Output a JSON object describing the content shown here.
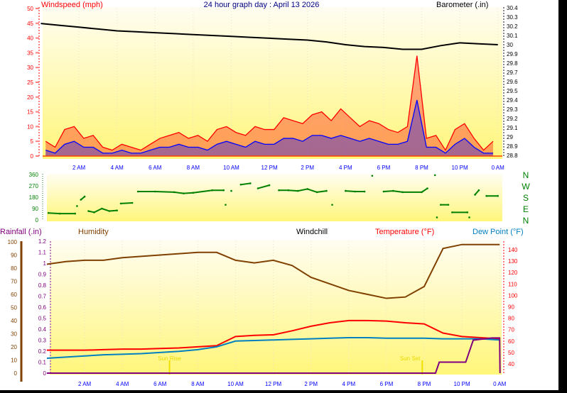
{
  "title": "24 hour graph day : April 13 2026",
  "colors": {
    "windspeed": "#ff0000",
    "wind_avg": "#0000ff",
    "barometer": "#000000",
    "direction": "#008000",
    "rainfall": "#800080",
    "humidity": "#804000",
    "windchill": "#000000",
    "temperature": "#ff0000",
    "dewpoint": "#0080c0",
    "sun": "#f0e000",
    "time_axis": "#0000ff"
  },
  "time_labels": [
    "2 AM",
    "4 AM",
    "6 AM",
    "8 AM",
    "10 AM",
    "12 PM",
    "2 PM",
    "4 PM",
    "6 PM",
    "8 PM",
    "10 PM",
    "0 AM"
  ],
  "chart_data": [
    {
      "type": "line",
      "xlabel": "",
      "y_left": {
        "label": "Windspeed (mph)",
        "range": [
          0,
          50
        ],
        "ticks": [
          "0",
          "5",
          "10",
          "15",
          "20",
          "25",
          "30",
          "35",
          "40",
          "45",
          "50"
        ]
      },
      "y_right": {
        "label": "Barometer (.in)",
        "range": [
          28.8,
          30.4
        ],
        "ticks": [
          "28.8",
          "28.9",
          "29",
          "29.1",
          "29.2",
          "29.3",
          "29.4",
          "29.5",
          "29.6",
          "29.7",
          "29.8",
          "29.9",
          "30",
          "30.1",
          "30.2",
          "30.3",
          "30.4"
        ]
      },
      "x_hours_step": 0.5,
      "series": [
        {
          "name": "Windspeed (mph)",
          "axis": "left",
          "values": [
            5,
            3,
            9,
            10,
            6,
            7,
            3,
            2,
            4,
            3,
            2,
            4,
            6,
            7,
            8,
            6,
            7,
            5,
            9,
            10,
            8,
            7,
            10,
            9,
            9,
            13,
            12,
            11,
            14,
            15,
            12,
            16,
            13,
            10,
            12,
            11,
            9,
            8,
            10,
            34,
            6,
            7,
            2,
            9,
            11,
            6,
            2,
            5
          ]
        },
        {
          "axis": "left",
          "values": [
            2,
            1,
            4,
            5,
            3,
            3,
            1,
            1,
            2,
            1,
            1,
            2,
            3,
            3,
            4,
            3,
            3,
            2,
            4,
            5,
            4,
            3,
            5,
            4,
            4,
            6,
            6,
            5,
            7,
            7,
            6,
            7,
            6,
            5,
            6,
            5,
            4,
            4,
            5,
            19,
            3,
            3,
            1,
            4,
            6,
            3,
            1,
            1
          ]
        },
        {
          "name": "Barometer (.in)",
          "axis": "right",
          "x_hours_step": 1,
          "values": [
            30.23,
            30.21,
            30.19,
            30.17,
            30.15,
            30.14,
            30.13,
            30.12,
            30.11,
            30.1,
            30.09,
            30.08,
            30.07,
            30.06,
            30.05,
            30.03,
            30.0,
            29.98,
            29.97,
            29.95,
            29.95,
            29.99,
            30.02,
            30.01,
            30.0
          ]
        }
      ]
    },
    {
      "type": "scatter",
      "y_left": {
        "range": [
          0,
          360
        ],
        "ticks": [
          "0",
          "90",
          "180",
          "270",
          "360"
        ]
      },
      "y_right": {
        "ticks": [
          "N",
          "E",
          "S",
          "W",
          "N"
        ]
      },
      "points": [
        [
          0.4,
          55
        ],
        [
          1,
          50
        ],
        [
          1.8,
          50
        ],
        [
          1.9,
          110
        ],
        [
          2.1,
          160
        ],
        [
          2.3,
          185
        ],
        [
          2.5,
          70
        ],
        [
          2.8,
          60
        ],
        [
          3.2,
          90
        ],
        [
          3.6,
          70
        ],
        [
          4,
          75
        ],
        [
          4.2,
          130
        ],
        [
          4.8,
          135
        ],
        [
          5.1,
          225
        ],
        [
          6,
          225
        ],
        [
          7,
          220
        ],
        [
          7.5,
          210
        ],
        [
          8,
          215
        ],
        [
          9,
          235
        ],
        [
          9.6,
          235
        ],
        [
          9.7,
          120
        ],
        [
          10,
          230
        ],
        [
          10.5,
          280
        ],
        [
          11,
          290
        ],
        [
          11.4,
          250
        ],
        [
          12,
          275
        ],
        [
          12.5,
          235
        ],
        [
          13,
          235
        ],
        [
          13.5,
          230
        ],
        [
          14,
          245
        ],
        [
          14.5,
          220
        ],
        [
          15,
          230
        ],
        [
          15.3,
          120
        ],
        [
          16,
          230
        ],
        [
          16.5,
          225
        ],
        [
          17,
          225
        ],
        [
          17.4,
          350
        ],
        [
          18,
          225
        ],
        [
          18.5,
          230
        ],
        [
          19,
          220
        ],
        [
          20,
          220
        ],
        [
          20.3,
          250
        ],
        [
          20.7,
          355
        ],
        [
          20.8,
          20
        ],
        [
          21,
          120
        ],
        [
          21.4,
          120
        ],
        [
          21.6,
          60
        ],
        [
          22.4,
          60
        ],
        [
          22.5,
          20
        ],
        [
          22.8,
          200
        ],
        [
          23,
          235
        ],
        [
          23.4,
          190
        ],
        [
          24,
          190
        ]
      ]
    },
    {
      "type": "line",
      "legend": [
        "Rainfall (.in)",
        "Humidity",
        "Windchill",
        "Temperature (°F)",
        "Dew Point (°F)"
      ],
      "y_humidity": {
        "range": [
          0,
          100
        ],
        "ticks": [
          "0",
          "10",
          "20",
          "30",
          "40",
          "50",
          "60",
          "70",
          "80",
          "90",
          "100"
        ]
      },
      "y_rain": {
        "range": [
          0,
          1.2
        ],
        "ticks": [
          "0",
          "0.1",
          "0.2",
          "0.3",
          "0.4",
          "0.5",
          "0.6",
          "0.7",
          "0.8",
          "0.9",
          "1",
          "1.1",
          "1.2"
        ]
      },
      "y_temp": {
        "range": [
          30,
          148
        ],
        "ticks": [
          "40",
          "50",
          "60",
          "70",
          "80",
          "90",
          "100",
          "110",
          "120",
          "130",
          "140"
        ]
      },
      "x_hours_step": 1,
      "series": [
        {
          "name": "Humidity",
          "values": [
            83,
            85,
            86,
            86,
            88,
            89,
            90,
            91,
            92,
            92,
            86,
            84,
            86,
            82,
            73,
            68,
            63,
            60,
            57,
            58,
            66,
            95,
            98,
            98,
            98
          ]
        },
        {
          "name": "Temperature (°F)",
          "values": [
            52,
            52,
            52,
            52.5,
            53,
            53,
            53.5,
            54,
            55,
            56,
            64,
            65,
            65.5,
            69,
            73,
            76,
            78,
            78,
            77.5,
            76,
            75,
            67,
            64,
            63,
            62
          ]
        },
        {
          "name": "Dew Point (°F)",
          "values": [
            45,
            46,
            47,
            48,
            48.5,
            49,
            50,
            51,
            52.5,
            55,
            60,
            60.5,
            61,
            61.5,
            62,
            62.5,
            63,
            63,
            62.5,
            62.5,
            62.5,
            62,
            62,
            62,
            61
          ]
        },
        {
          "name": "Rainfall (.in)",
          "points": [
            [
              0,
              0
            ],
            [
              20.6,
              0
            ],
            [
              20.8,
              0.1
            ],
            [
              22.2,
              0.1
            ],
            [
              22.6,
              0.3
            ],
            [
              23.6,
              0.32
            ],
            [
              24,
              0.32
            ],
            [
              24.02,
              0
            ]
          ]
        }
      ],
      "annotations": [
        {
          "label": "Sun Rise",
          "hour": 6.5
        },
        {
          "label": "Sun Set",
          "hour": 19.9
        }
      ]
    }
  ]
}
